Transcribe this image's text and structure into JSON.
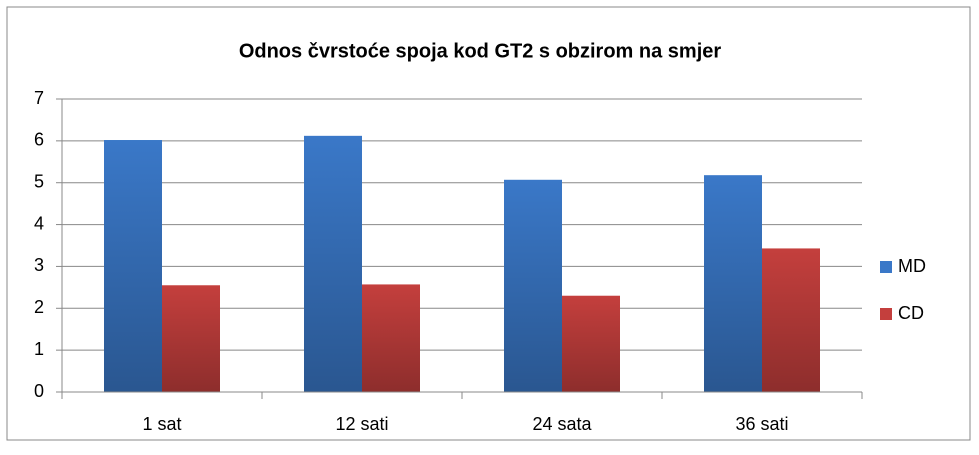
{
  "chart_data": {
    "type": "bar",
    "title": "Odnos čvrstoće spoja kod GT2 s obzirom na smjer",
    "categories": [
      "1 sat",
      "12 sati",
      "24 sata",
      "36 sati"
    ],
    "series": [
      {
        "name": "MD",
        "color": "#3a78c8",
        "values": [
          6.02,
          6.12,
          5.07,
          5.18
        ]
      },
      {
        "name": "CD",
        "color": "#c43f3d",
        "values": [
          2.55,
          2.57,
          2.3,
          3.43
        ]
      }
    ],
    "ylim": [
      0,
      7
    ],
    "yticks": [
      0,
      1,
      2,
      3,
      4,
      5,
      6,
      7
    ],
    "grid": true,
    "legend": "right"
  }
}
